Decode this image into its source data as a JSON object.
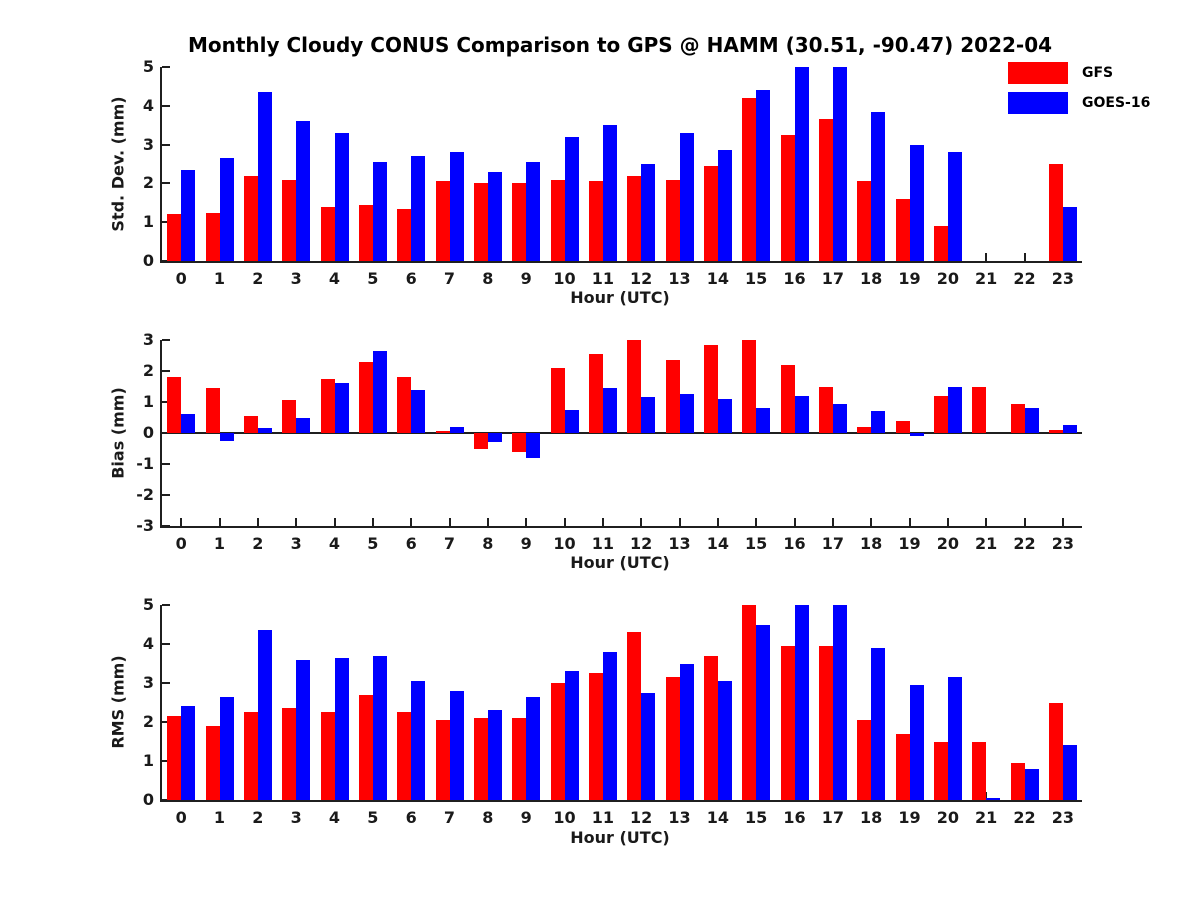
{
  "figure": {
    "title": "Monthly Cloudy CONUS Comparison to GPS @ HAMM (30.51, -90.47) 2022-04",
    "background_color": "#ffffff",
    "axis_color": "#1f1f1f"
  },
  "legend": {
    "position": "top-right",
    "items": [
      {
        "label": "GFS",
        "color": "#ff0000"
      },
      {
        "label": "GOES-16",
        "color": "#0000ff"
      }
    ]
  },
  "chart_data": [
    {
      "type": "bar",
      "panel": "top",
      "ylabel": "Std. Dev. (mm)",
      "xlabel": "Hour (UTC)",
      "ylim": [
        0,
        5
      ],
      "yticks": [
        0,
        1,
        2,
        3,
        4,
        5
      ],
      "grid": false,
      "categories": [
        "0",
        "1",
        "2",
        "3",
        "4",
        "5",
        "6",
        "7",
        "8",
        "9",
        "10",
        "11",
        "12",
        "13",
        "14",
        "15",
        "16",
        "17",
        "18",
        "19",
        "20",
        "21",
        "22",
        "23"
      ],
      "series": [
        {
          "name": "GFS",
          "color": "#ff0000",
          "values": [
            1.2,
            1.25,
            2.2,
            2.1,
            1.4,
            1.45,
            1.35,
            2.05,
            2.0,
            2.0,
            2.1,
            2.05,
            2.2,
            2.1,
            2.45,
            4.2,
            3.25,
            3.65,
            2.05,
            1.6,
            0.9,
            0,
            0,
            2.5
          ]
        },
        {
          "name": "GOES-16",
          "color": "#0000ff",
          "values": [
            2.35,
            2.65,
            4.35,
            3.6,
            3.3,
            2.55,
            2.7,
            2.8,
            2.3,
            2.55,
            3.2,
            3.5,
            2.5,
            3.3,
            2.85,
            4.4,
            5.0,
            5.0,
            3.85,
            3.0,
            2.8,
            0,
            0,
            1.4
          ]
        }
      ]
    },
    {
      "type": "bar",
      "panel": "middle",
      "ylabel": "Bias (mm)",
      "xlabel": "Hour (UTC)",
      "ylim": [
        -3,
        3
      ],
      "yticks": [
        -3,
        -2,
        -1,
        0,
        1,
        2,
        3
      ],
      "grid": false,
      "categories": [
        "0",
        "1",
        "2",
        "3",
        "4",
        "5",
        "6",
        "7",
        "8",
        "9",
        "10",
        "11",
        "12",
        "13",
        "14",
        "15",
        "16",
        "17",
        "18",
        "19",
        "20",
        "21",
        "22",
        "23"
      ],
      "series": [
        {
          "name": "GFS",
          "color": "#ff0000",
          "values": [
            1.8,
            1.45,
            0.55,
            1.05,
            1.75,
            2.3,
            1.8,
            0.05,
            -0.5,
            -0.6,
            2.1,
            2.55,
            3.0,
            2.35,
            2.85,
            3.0,
            2.2,
            1.5,
            0.2,
            0.4,
            1.2,
            1.5,
            0.95,
            0.1
          ]
        },
        {
          "name": "GOES-16",
          "color": "#0000ff",
          "values": [
            0.6,
            -0.25,
            0.15,
            0.5,
            1.6,
            2.65,
            1.4,
            0.2,
            -0.3,
            -0.8,
            0.75,
            1.45,
            1.15,
            1.25,
            1.1,
            0.8,
            1.2,
            0.95,
            0.7,
            -0.1,
            1.5,
            0,
            0.8,
            0.25
          ]
        }
      ]
    },
    {
      "type": "bar",
      "panel": "bottom",
      "ylabel": "RMS (mm)",
      "xlabel": "Hour (UTC)",
      "ylim": [
        0,
        5
      ],
      "yticks": [
        0,
        1,
        2,
        3,
        4,
        5
      ],
      "grid": false,
      "categories": [
        "0",
        "1",
        "2",
        "3",
        "4",
        "5",
        "6",
        "7",
        "8",
        "9",
        "10",
        "11",
        "12",
        "13",
        "14",
        "15",
        "16",
        "17",
        "18",
        "19",
        "20",
        "21",
        "22",
        "23"
      ],
      "series": [
        {
          "name": "GFS",
          "color": "#ff0000",
          "values": [
            2.15,
            1.9,
            2.25,
            2.35,
            2.25,
            2.7,
            2.25,
            2.05,
            2.1,
            2.1,
            3.0,
            3.25,
            4.3,
            3.15,
            3.7,
            5.0,
            3.95,
            3.95,
            2.05,
            1.7,
            1.5,
            1.5,
            0.95,
            2.5
          ]
        },
        {
          "name": "GOES-16",
          "color": "#0000ff",
          "values": [
            2.4,
            2.65,
            4.35,
            3.6,
            3.65,
            3.7,
            3.05,
            2.8,
            2.3,
            2.65,
            3.3,
            3.8,
            2.75,
            3.5,
            3.05,
            4.5,
            5.0,
            5.0,
            3.9,
            2.95,
            3.15,
            0.05,
            0.8,
            1.4
          ]
        }
      ]
    }
  ]
}
